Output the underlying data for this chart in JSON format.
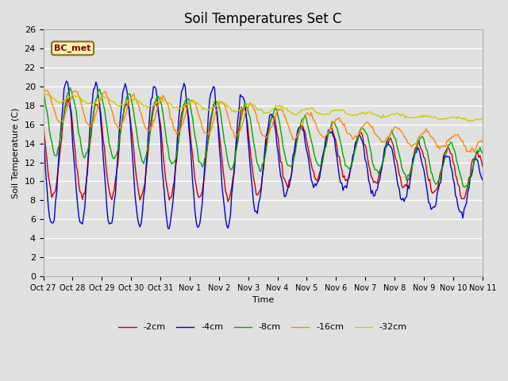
{
  "title": "Soil Temperatures Set C",
  "xlabel": "Time",
  "ylabel": "Soil Temperature (C)",
  "ylim": [
    0,
    26
  ],
  "yticks": [
    0,
    2,
    4,
    6,
    8,
    10,
    12,
    14,
    16,
    18,
    20,
    22,
    24,
    26
  ],
  "xtick_labels": [
    "Oct 27",
    "Oct 28",
    "Oct 29",
    "Oct 30",
    "Oct 31",
    "Nov 1",
    "Nov 2",
    "Nov 3",
    "Nov 4",
    "Nov 5",
    "Nov 6",
    "Nov 7",
    "Nov 8",
    "Nov 9",
    "Nov 10",
    "Nov 11"
  ],
  "annotation_text": "BC_met",
  "colors": {
    "-2cm": "#cc0000",
    "-4cm": "#0000cc",
    "-8cm": "#00aa00",
    "-16cm": "#ff8800",
    "-32cm": "#cccc00"
  },
  "legend_labels": [
    "-2cm",
    "-4cm",
    "-8cm",
    "-16cm",
    "-32cm"
  ],
  "background_color": "#e0e0e0",
  "plot_bg_color": "#e0e0e0",
  "grid_color": "#ffffff",
  "title_fontsize": 12,
  "figsize": [
    6.4,
    4.8
  ],
  "dpi": 100
}
